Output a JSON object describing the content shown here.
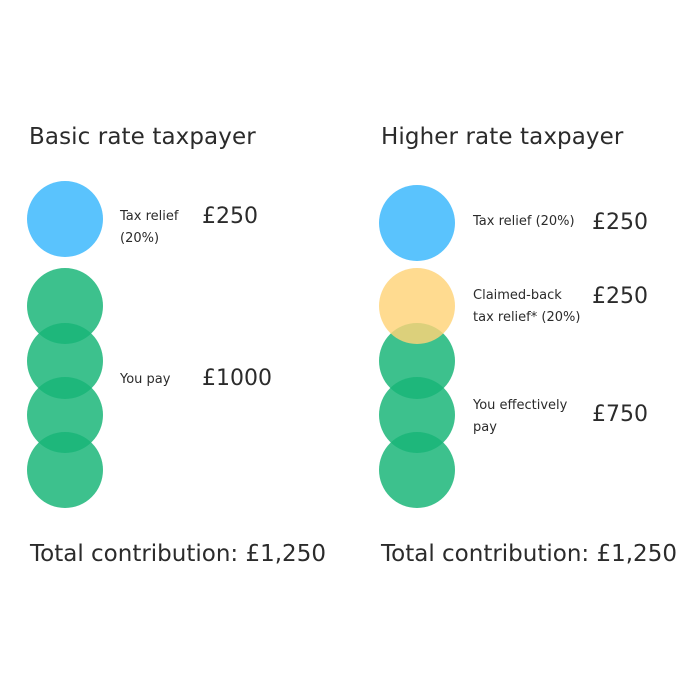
{
  "colors": {
    "tax_relief": "#5ac3fd",
    "you_pay": "#18b577",
    "claimed_back": "#ffd378"
  },
  "basic": {
    "title": "Basic rate taxpayer",
    "tax_relief_label_line1": "Tax relief",
    "tax_relief_label_line2": "(20%)",
    "tax_relief_amount": "£250",
    "you_pay_label": "You pay",
    "you_pay_amount": "£1000",
    "total": "Total contribution: £1,250"
  },
  "higher": {
    "title": "Higher rate taxpayer",
    "tax_relief_label": "Tax relief (20%)",
    "tax_relief_amount": "£250",
    "claimed_label_line1": "Claimed-back",
    "claimed_label_line2": "tax relief* (20%)",
    "claimed_amount": "£250",
    "effectively_label_line1": "You effectively",
    "effectively_label_line2": "pay",
    "effectively_amount": "£750",
    "total": "Total contribution: £1,250"
  }
}
